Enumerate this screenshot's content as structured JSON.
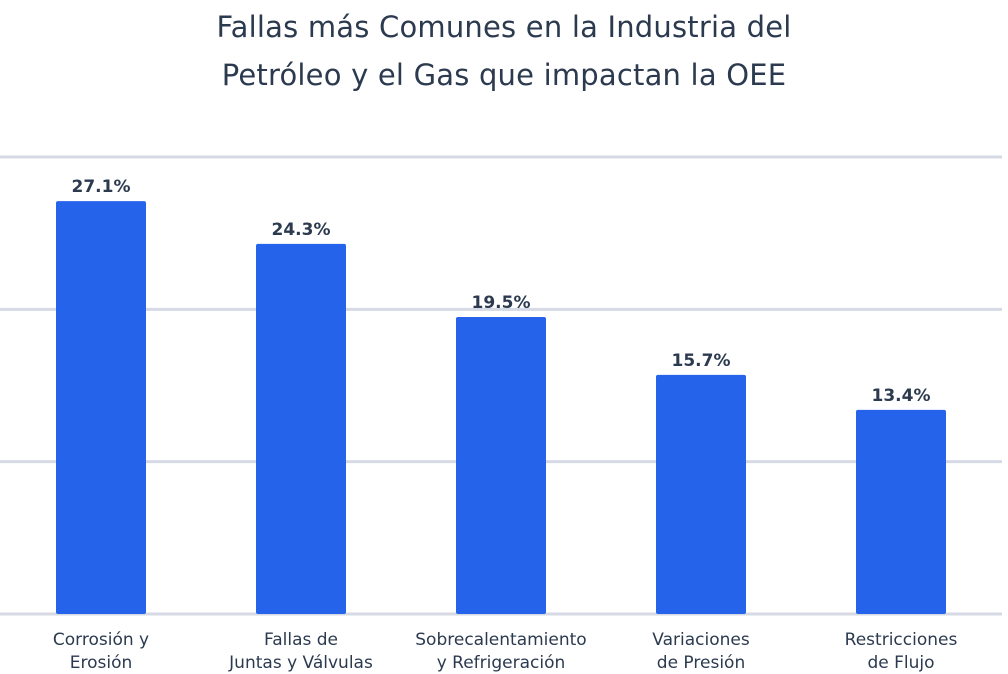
{
  "chart_data": {
    "type": "bar",
    "title_lines": [
      "Fallas más Comunes en la Industria del",
      "Petróleo y el Gas que impactan la OEE"
    ],
    "categories": [
      [
        "Corrosión y",
        "Erosión"
      ],
      [
        "Fallas de",
        "Juntas y Válvulas"
      ],
      [
        "Sobrecalentamiento",
        "y Refrigeración"
      ],
      [
        "Variaciones",
        "de Presión"
      ],
      [
        "Restricciones",
        "de Flujo"
      ]
    ],
    "values": [
      27.1,
      24.3,
      19.5,
      15.7,
      13.4
    ],
    "value_labels": [
      "27.1%",
      "24.3%",
      "19.5%",
      "15.7%",
      "13.4%"
    ],
    "ylim": [
      0,
      30
    ],
    "grid": true,
    "gridline_values": [
      0,
      10,
      20,
      30
    ],
    "bar_color": "#2563eb",
    "text_color": "#2b3a4f",
    "grid_color": "#d5dae4"
  }
}
